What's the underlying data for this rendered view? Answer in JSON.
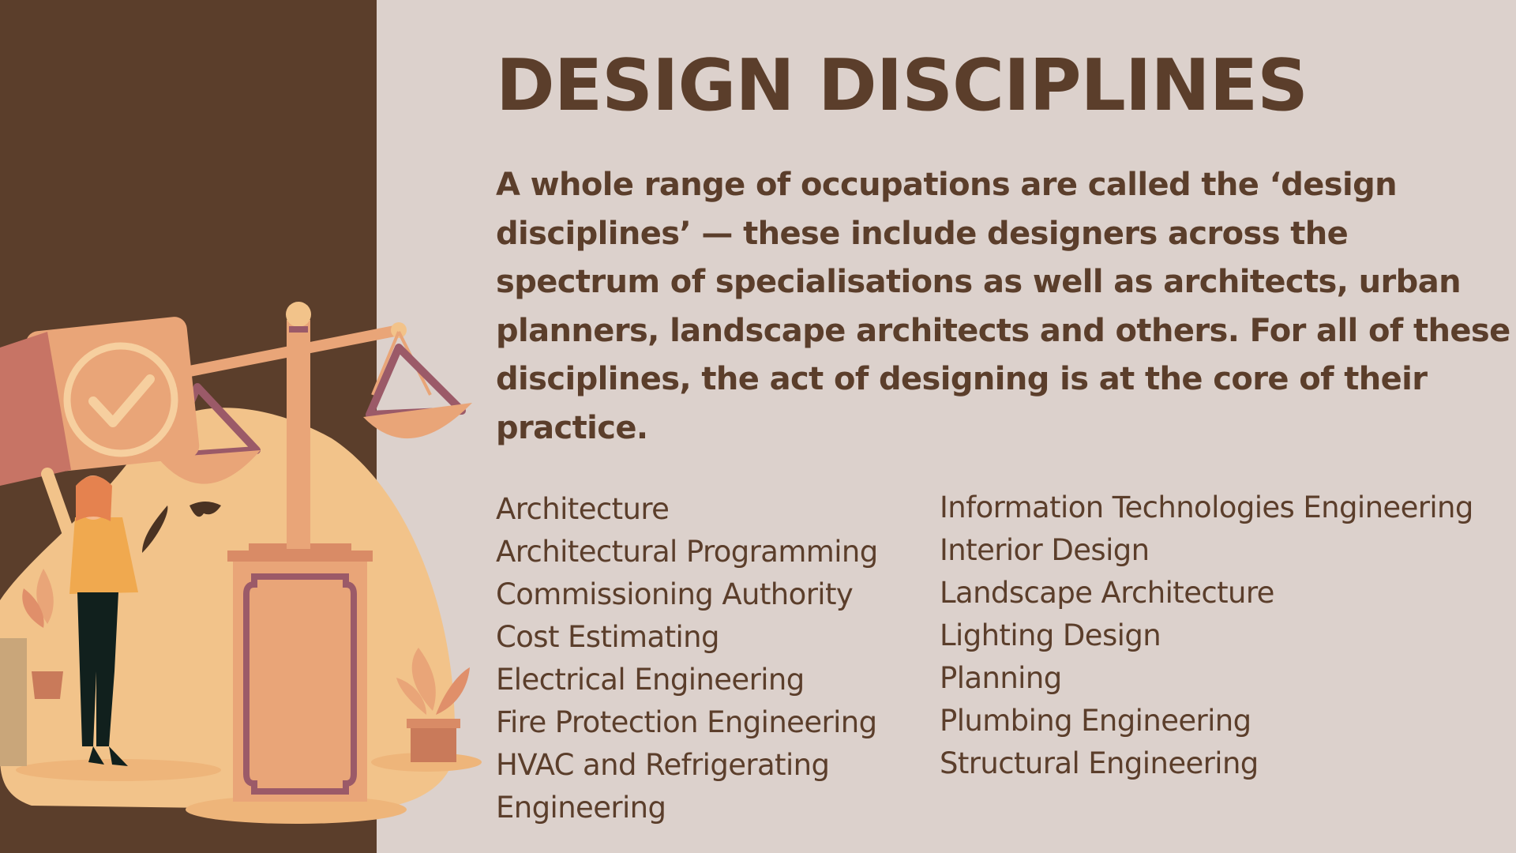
{
  "slide": {
    "title": "DESIGN DISCIPLINES",
    "intro": "A whole range of occupations are called the ‘design disciplines’ — these include designers across the spectrum of specialisations as well as architects, urban planners, landscape architects and others. For all of these disciplines, the act of designing is at the core of their practice.",
    "disciplines_left": [
      "Architecture",
      "Architectural Programming",
      "Commissioning Authority",
      "Cost Estimating",
      "Electrical Engineering",
      "Fire Protection Engineering",
      "HVAC and Refrigerating Engineering"
    ],
    "disciplines_right": [
      "Information Technologies Engineering",
      "Interior Design",
      "Landscape Architecture",
      "Lighting Design",
      "Planning",
      "Plumbing Engineering",
      "Structural Engineering"
    ]
  },
  "illustration": {
    "icon": "woman-holding-checkmark-box-with-balance-scale-illustration"
  },
  "colors": {
    "background": "#dcd1cc",
    "panel": "#5b3e2b",
    "text": "#5b3e2b",
    "blob": "#f2c38a",
    "scale": "#e9a578",
    "scale_outline": "#9b5a68"
  }
}
